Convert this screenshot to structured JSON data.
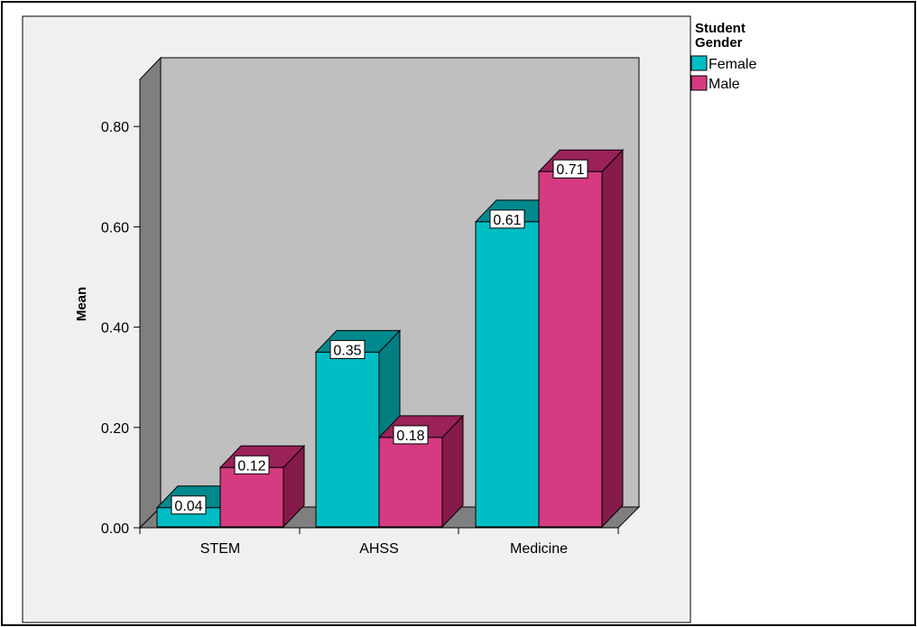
{
  "chart_data": {
    "type": "bar",
    "style": "3d-clustered",
    "ylabel": "Mean",
    "xlabel": "",
    "ylim": [
      0,
      0.9
    ],
    "yticks": [
      "0.00",
      "0.20",
      "0.40",
      "0.60",
      "0.80"
    ],
    "ytick_values": [
      0,
      0.2,
      0.4,
      0.6,
      0.8
    ],
    "categories": [
      "STEM",
      "AHSS",
      "Medicine"
    ],
    "legend_title": [
      "Student",
      "Gender"
    ],
    "legend_position": "top-right",
    "grid": false,
    "series": [
      {
        "name": "Female",
        "values": [
          0.04,
          0.35,
          0.61
        ],
        "labels": [
          "0.04",
          "0.35",
          "0.61"
        ],
        "color": "#00BDC4",
        "side_color": "#007E82",
        "top_color": "#00898D"
      },
      {
        "name": "Male",
        "values": [
          0.12,
          0.18,
          0.71
        ],
        "labels": [
          "0.12",
          "0.18",
          "0.71"
        ],
        "color": "#D63A80",
        "side_color": "#851B4A",
        "top_color": "#9A2258"
      }
    ],
    "colors": {
      "plot_background": "#F0F0F0",
      "back_wall": "#BFBFBF",
      "side_wall": "#7F7F7F",
      "floor": "#7F7F7F"
    }
  }
}
